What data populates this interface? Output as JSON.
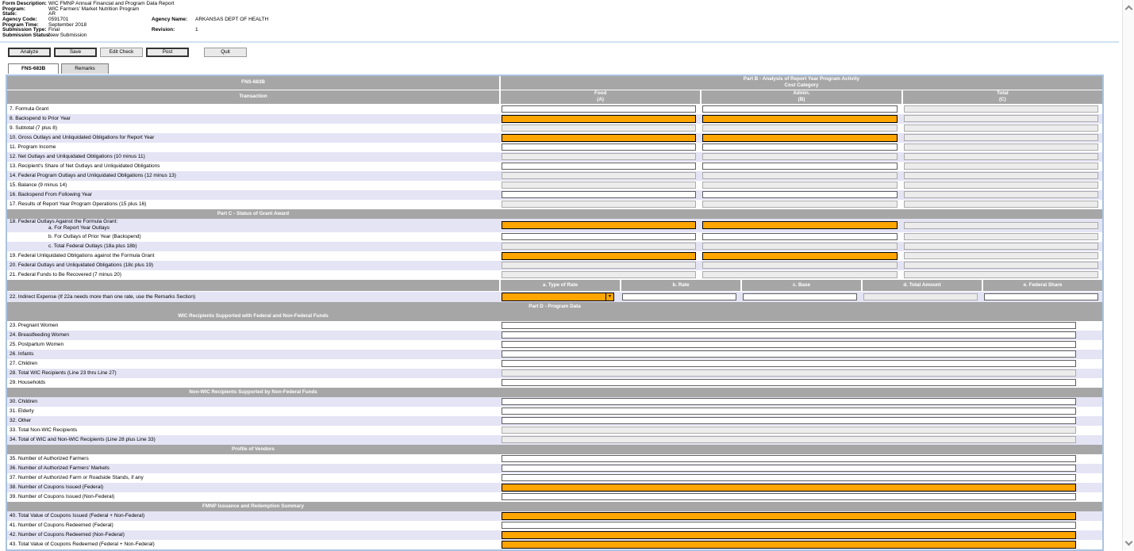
{
  "info": {
    "rows": [
      {
        "label": "Form Description:",
        "value": "WIC FMNP Annual Financial and Program Data Report"
      },
      {
        "label": "Program:",
        "value": "WIC Farmers' Market Nutrition Program"
      },
      {
        "label": "State:",
        "value": "AR"
      },
      {
        "label": "Agency Code:",
        "value": "0591701",
        "label2": "Agency Name:",
        "value2": "ARKANSAS DEPT OF HEALTH"
      },
      {
        "label": "Program Time:",
        "value": "September 2018"
      },
      {
        "label": "Submission Type:",
        "value": "Final",
        "label2": "Revision:",
        "value2": "1"
      },
      {
        "label": "Submission Status:",
        "value": "New Submission"
      }
    ]
  },
  "toolbar": {
    "buttons": [
      {
        "label": "Analyze",
        "emphasis": true
      },
      {
        "label": "Save",
        "emphasis": true
      },
      {
        "label": "Edit Check",
        "emphasis": false
      },
      {
        "label": "Post",
        "emphasis": true
      },
      {
        "label": "Quit",
        "emphasis": false,
        "gap": true
      }
    ]
  },
  "tabs": [
    {
      "label": "FNS-683B",
      "active": true
    },
    {
      "label": "Remarks",
      "active": false
    }
  ],
  "colors": {
    "highlight_orange": "#FFA500",
    "header_gray": "#a6a6a6",
    "row_alt_lavender": "#e4e4f5",
    "frame_blue": "#aac4e2"
  },
  "table": {
    "header": {
      "left": "FNS-683B",
      "right_line1": "Part B - Analysis of Report Year Program Activity",
      "right_line2": "Cost Category",
      "sub_left": "Transaction",
      "columns": [
        {
          "line1": "Food",
          "line2": "(A)"
        },
        {
          "line1": "Admin.",
          "line2": "(B)"
        },
        {
          "line1": "Total",
          "line2": "(C)"
        }
      ]
    },
    "rate_columns": [
      "a. Type of Rate",
      "b. Rate",
      "c. Base",
      "d. Total Amount",
      "e. Federal Share"
    ],
    "legend": {
      "w": "editable",
      "o": "required-highlight",
      "r": "readonly",
      "s": "select-highlight"
    },
    "rows": [
      {
        "kind": "row3",
        "id": "7",
        "label": "7. Formula Grant",
        "cells": [
          "w",
          "w",
          "r"
        ]
      },
      {
        "kind": "row3",
        "id": "8",
        "label": "8. Backspend to Prior Year",
        "cells": [
          "o",
          "o",
          "r"
        ]
      },
      {
        "kind": "row3",
        "id": "9",
        "label": "9. Subtotal (7 plus 8)",
        "cells": [
          "r",
          "r",
          "r"
        ]
      },
      {
        "kind": "row3",
        "id": "10",
        "label": "10. Gross Outlays and Unliquidated Obligations for Report Year",
        "cells": [
          "o",
          "o",
          "r"
        ]
      },
      {
        "kind": "row3",
        "id": "11",
        "label": "11. Program Income",
        "cells": [
          "w",
          "w",
          "r"
        ]
      },
      {
        "kind": "row3",
        "id": "12",
        "label": "12. Net Outlays and Unliquidated Obligations (10 minus 11)",
        "cells": [
          "r",
          "r",
          "r"
        ]
      },
      {
        "kind": "row3",
        "id": "13",
        "label": "13. Recipient's Share of Net Outlays and Unliquidated Obligations",
        "cells": [
          "w",
          "w",
          "r"
        ]
      },
      {
        "kind": "row3",
        "id": "14",
        "label": "14. Federal Program Outlays and Unliquidated Obligations (12 minus 13)",
        "cells": [
          "r",
          "r",
          "r"
        ]
      },
      {
        "kind": "row3",
        "id": "15",
        "label": "15. Balance (9 minus 14)",
        "cells": [
          "r",
          "r",
          "r"
        ]
      },
      {
        "kind": "row3",
        "id": "16",
        "label": "16. Backspend From Following Year",
        "cells": [
          "w",
          "w",
          "r"
        ]
      },
      {
        "kind": "row3",
        "id": "17",
        "label": "17. Results of Report Year Program Operations (15 plus 16)",
        "cells": [
          "r",
          "r",
          "r"
        ]
      },
      {
        "kind": "section",
        "label": "Part C - Status of Grant Award",
        "center": "left"
      },
      {
        "kind": "row3",
        "id": "18a",
        "label": "18. Federal Outlays Against the Formula Grant:",
        "sublabel": "a. For Report Year Outlays",
        "cells": [
          "o",
          "o",
          "r"
        ]
      },
      {
        "kind": "row3",
        "id": "18b",
        "label": "b. For Outlays of Prior Year (Backspend)",
        "indent": true,
        "cells": [
          "w",
          "w",
          "r"
        ]
      },
      {
        "kind": "row3",
        "id": "18c",
        "label": "c. Total Federal Outlays (18a plus 18b)",
        "indent": true,
        "cells": [
          "r",
          "r",
          "r"
        ]
      },
      {
        "kind": "row3",
        "id": "19",
        "label": "19. Federal Unliquidated Obligations against the Formula Grant",
        "cells": [
          "o",
          "o",
          "r"
        ]
      },
      {
        "kind": "row3",
        "id": "20",
        "label": "20. Federal Outlays and Unliquidated Obligations (18c plus 19)",
        "cells": [
          "r",
          "r",
          "r"
        ]
      },
      {
        "kind": "row3",
        "id": "21",
        "label": "21. Federal Funds to Be Recovered (7 minus 20)",
        "cells": [
          "r",
          "r",
          "r"
        ]
      },
      {
        "kind": "ratehdr"
      },
      {
        "kind": "rate",
        "id": "22",
        "label": "22. Indirect Expense (If 22a needs more than one rate, use the Remarks Section)",
        "cells": [
          "s",
          "w",
          "w",
          "r",
          "w"
        ]
      },
      {
        "kind": "section",
        "label": "Part D - Program Data",
        "center": "full"
      },
      {
        "kind": "section",
        "label": "WIC Recipients Supported with Federal and Non-Federal Funds",
        "center": "left"
      },
      {
        "kind": "row1",
        "id": "23",
        "label": "23. Pregnant Women",
        "cells": [
          "w"
        ]
      },
      {
        "kind": "row1",
        "id": "24",
        "label": "24. Breastfeeding Women",
        "cells": [
          "w"
        ]
      },
      {
        "kind": "row1",
        "id": "25",
        "label": "25. Postpartum Women",
        "cells": [
          "w"
        ]
      },
      {
        "kind": "row1",
        "id": "26",
        "label": "26. Infants",
        "cells": [
          "w"
        ]
      },
      {
        "kind": "row1",
        "id": "27",
        "label": "27. Children",
        "cells": [
          "w"
        ]
      },
      {
        "kind": "row1",
        "id": "28",
        "label": "28. Total WIC Recipients (Line 23 thru Line 27)",
        "cells": [
          "r"
        ]
      },
      {
        "kind": "row1",
        "id": "29",
        "label": "29. Households",
        "cells": [
          "w"
        ]
      },
      {
        "kind": "section",
        "label": "Non-WIC Recipients Supported by Non-Federal Funds",
        "center": "left"
      },
      {
        "kind": "row1",
        "id": "30",
        "label": "30. Children",
        "cells": [
          "w"
        ]
      },
      {
        "kind": "row1",
        "id": "31",
        "label": "31. Elderly",
        "cells": [
          "w"
        ]
      },
      {
        "kind": "row1",
        "id": "32",
        "label": "32. Other",
        "cells": [
          "w"
        ]
      },
      {
        "kind": "row1",
        "id": "33",
        "label": "33. Total Non-WIC Recipients",
        "cells": [
          "r"
        ]
      },
      {
        "kind": "row1",
        "id": "34",
        "label": "34. Total of WIC and Non-WIC Recipients (Line 28 plus Line 33)",
        "cells": [
          "r"
        ]
      },
      {
        "kind": "section",
        "label": "Profile of Vendors",
        "center": "left"
      },
      {
        "kind": "row1",
        "id": "35",
        "label": "35. Number of Authorized Farmers",
        "cells": [
          "w"
        ]
      },
      {
        "kind": "row1",
        "id": "36",
        "label": "36. Number of Authorized Farmers' Markets",
        "cells": [
          "w"
        ]
      },
      {
        "kind": "row1",
        "id": "37",
        "label": "37. Number of Authorized Farm or Roadside Stands, if any",
        "cells": [
          "w"
        ]
      },
      {
        "kind": "row1",
        "id": "38",
        "label": "38. Number of Coupons Issued (Federal)",
        "cells": [
          "o"
        ]
      },
      {
        "kind": "row1",
        "id": "39",
        "label": "39. Number of Coupons Issued (Non-Federal)",
        "cells": [
          "w"
        ]
      },
      {
        "kind": "section",
        "label": "FMNP Issuance and Redemption Summary",
        "center": "left"
      },
      {
        "kind": "row1",
        "id": "40",
        "label": "40. Total Value of Coupons Issued (Federal + Non-Federal)",
        "cells": [
          "o"
        ]
      },
      {
        "kind": "row1",
        "id": "41",
        "label": "41. Number of Coupons Redeemed (Federal)",
        "cells": [
          "w"
        ]
      },
      {
        "kind": "row1",
        "id": "42",
        "label": "42. Number of Coupons Redeemed (Non-Federal)",
        "cells": [
          "o"
        ]
      },
      {
        "kind": "row1",
        "id": "43",
        "label": "43. Total Value of Coupons Redeemed (Federal + Non-Federal)",
        "cells": [
          "o"
        ]
      }
    ]
  },
  "scrollbar": {
    "up": "scroll-up",
    "down": "scroll-down"
  }
}
